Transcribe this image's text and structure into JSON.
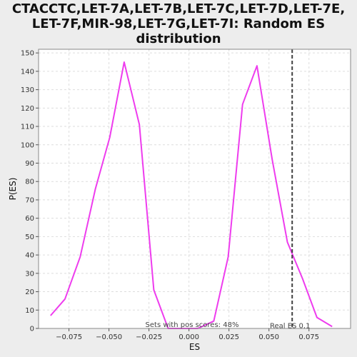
{
  "chart_data": {
    "type": "line",
    "title_lines": [
      "CTACCTC,LET-7A,LET-7B,LET-7C,LET-7D,LET-7E,",
      "LET-7F,MIR-98,LET-7G,LET-7I: Random ES",
      "distribution"
    ],
    "xlabel": "ES",
    "ylabel": "P(ES)",
    "xlim": [
      -0.094,
      0.101
    ],
    "ylim": [
      0,
      152
    ],
    "xticks": [
      -0.075,
      -0.05,
      -0.025,
      0.0,
      0.025,
      0.05,
      0.075
    ],
    "xtick_labels": [
      "−0.075",
      "−0.050",
      "−0.025",
      "0.000",
      "0.025",
      "0.050",
      "0.075"
    ],
    "yticks": [
      0,
      10,
      20,
      30,
      40,
      50,
      60,
      70,
      80,
      90,
      100,
      110,
      120,
      130,
      140,
      150
    ],
    "grid": true,
    "series": [
      {
        "color": "#ee3cee",
        "x": [
          -0.0865,
          -0.0775,
          -0.068,
          -0.0585,
          -0.0495,
          -0.0405,
          -0.031,
          -0.022,
          -0.013,
          -0.004,
          0.0055,
          0.0155,
          0.0245,
          0.0335,
          0.0425,
          0.052,
          0.0615,
          0.071,
          0.08,
          0.0895
        ],
        "y": [
          7,
          16,
          39,
          76,
          104,
          145,
          111,
          21,
          0,
          0,
          0,
          4,
          39,
          122,
          143,
          92,
          47,
          27,
          6,
          1
        ]
      }
    ],
    "vline": {
      "x": 0.0645,
      "color": "#404040",
      "style": "dashed"
    },
    "annotations": {
      "pos_scores": "Sets with pos scores: 48%",
      "real_es": "Real ES 0.1"
    }
  }
}
